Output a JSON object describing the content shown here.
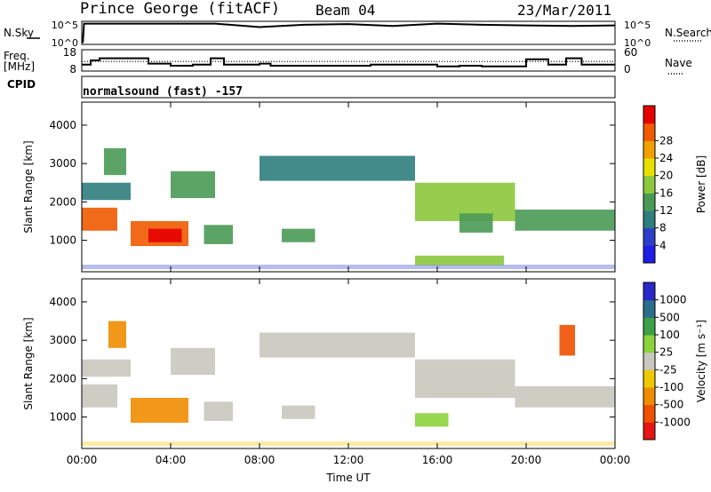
{
  "header": {
    "station": "Prince George (fitACF)",
    "beam": "Beam 04",
    "date": "23/Mar/2011"
  },
  "side_labels": {
    "nsky": "N.Sky",
    "nsearch": "N.Search",
    "freq": "Freq.",
    "freq_unit": "[MHz]",
    "nave": "Nave",
    "cpid": "CPID"
  },
  "mode_label": "normalsound (fast) -157",
  "colors": {
    "power": [
      "#1e1ee6",
      "#2d3ec8",
      "#2f7d7d",
      "#4a9a55",
      "#8cc83c",
      "#e8e000",
      "#f0a000",
      "#f05a00",
      "#e60000"
    ],
    "velocity": [
      "#2828c8",
      "#2d6e8c",
      "#3ca046",
      "#8cd23c",
      "#c8c8be",
      "#f0c800",
      "#f08c00",
      "#f05000",
      "#e61414"
    ]
  },
  "chart_data": [
    {
      "type": "line",
      "name": "nsky-nsearch",
      "x_unit": "hour UT",
      "y_ticks_left": [
        "10^5",
        "10^0"
      ],
      "y_ticks_right": [
        "10^5",
        "10^0"
      ],
      "series": [
        {
          "name": "N.Sky",
          "style": "solid",
          "x": [
            0,
            0.05,
            0.1,
            2,
            4,
            6,
            8,
            10,
            12,
            14,
            16,
            18,
            20,
            22,
            24
          ],
          "y": [
            0.1,
            0.1,
            0.9,
            0.9,
            0.9,
            0.9,
            0.75,
            0.85,
            0.88,
            0.8,
            0.9,
            0.85,
            0.82,
            0.8,
            0.82
          ]
        }
      ]
    },
    {
      "type": "line",
      "name": "freq-nave",
      "x_unit": "hour UT",
      "y_ticks_left": [
        "18",
        "8"
      ],
      "y_ticks_right": [
        "60",
        "0"
      ],
      "series": [
        {
          "name": "Freq",
          "style": "solid",
          "x": [
            0,
            0.4,
            0.4,
            0.8,
            0.8,
            3.0,
            3.0,
            4.0,
            4.0,
            5.0,
            5.0,
            5.8,
            5.8,
            6.4,
            6.4,
            8.0,
            8.0,
            8.5,
            8.5,
            13.0,
            13.0,
            16.0,
            16.0,
            17.0,
            17.0,
            18.0,
            18.0,
            20.0,
            20.0,
            21.0,
            21.0,
            21.8,
            21.8,
            22.5,
            22.5,
            24.0
          ],
          "y": [
            11,
            11,
            13,
            13,
            14,
            14,
            11.5,
            11.5,
            10.5,
            10.5,
            11,
            11,
            14,
            14,
            11,
            11,
            11.5,
            11.5,
            10.5,
            10.5,
            11,
            11,
            10.2,
            10.2,
            10.5,
            10.5,
            10.2,
            10.2,
            13.5,
            13.5,
            11,
            11,
            14,
            14,
            11,
            11
          ]
        },
        {
          "name": "Nave",
          "style": "dotted",
          "x": [
            0,
            24
          ],
          "y": [
            12.5,
            12.5
          ]
        }
      ]
    },
    {
      "type": "heatmap",
      "name": "power",
      "ylabel": "Slant Range [km]",
      "ylim": [
        180,
        4600
      ],
      "yticks": [
        1000,
        2000,
        3000,
        4000
      ],
      "colorbar_label": "Power [dB]",
      "colorbar_ticks": [
        "4",
        "8",
        "12",
        "16",
        "20",
        "24",
        "28"
      ],
      "echo_bands": [
        {
          "x0": 0.0,
          "x1": 1.6,
          "r0": 1250,
          "r1": 1850,
          "level": 7
        },
        {
          "x0": 0.0,
          "x1": 2.2,
          "r0": 2050,
          "r1": 2500,
          "level": 2
        },
        {
          "x0": 1.0,
          "x1": 2.0,
          "r0": 2700,
          "r1": 3400,
          "level": 3
        },
        {
          "x0": 2.2,
          "x1": 4.8,
          "r0": 850,
          "r1": 1500,
          "level": 7
        },
        {
          "x0": 3.0,
          "x1": 4.5,
          "r0": 950,
          "r1": 1300,
          "level": 8
        },
        {
          "x0": 4.0,
          "x1": 6.0,
          "r0": 2100,
          "r1": 2800,
          "level": 3
        },
        {
          "x0": 5.5,
          "x1": 6.8,
          "r0": 900,
          "r1": 1400,
          "level": 3
        },
        {
          "x0": 8.0,
          "x1": 15.0,
          "r0": 2550,
          "r1": 3200,
          "level": 2
        },
        {
          "x0": 9.0,
          "x1": 10.5,
          "r0": 950,
          "r1": 1300,
          "level": 3
        },
        {
          "x0": 15.0,
          "x1": 19.5,
          "r0": 1500,
          "r1": 2500,
          "level": 4
        },
        {
          "x0": 17.0,
          "x1": 18.5,
          "r0": 1200,
          "r1": 1700,
          "level": 3
        },
        {
          "x0": 19.5,
          "x1": 24.0,
          "r0": 1250,
          "r1": 1800,
          "level": 3
        },
        {
          "x0": 15.0,
          "x1": 19.0,
          "r0": 350,
          "r1": 600,
          "level": 4
        }
      ]
    },
    {
      "type": "heatmap",
      "name": "velocity",
      "ylabel": "Slant Range [km]",
      "xlabel": "Time UT",
      "ylim": [
        180,
        4600
      ],
      "yticks": [
        1000,
        2000,
        3000,
        4000
      ],
      "xticks": [
        "00:00",
        "04:00",
        "08:00",
        "12:00",
        "16:00",
        "20:00",
        "00:00"
      ],
      "colorbar_label": "Velocity [m s⁻¹]",
      "colorbar_ticks": [
        "1000",
        "500",
        "100",
        "25",
        "-25",
        "-100",
        "-500",
        "-1000"
      ],
      "echo_bands": [
        {
          "x0": 0.0,
          "x1": 1.6,
          "r0": 1250,
          "r1": 1850,
          "level": 4
        },
        {
          "x0": 0.0,
          "x1": 2.2,
          "r0": 2050,
          "r1": 2500,
          "level": 4
        },
        {
          "x0": 1.2,
          "x1": 2.0,
          "r0": 2800,
          "r1": 3500,
          "level": 6
        },
        {
          "x0": 2.2,
          "x1": 4.8,
          "r0": 850,
          "r1": 1500,
          "level": 6
        },
        {
          "x0": 4.0,
          "x1": 6.0,
          "r0": 2100,
          "r1": 2800,
          "level": 4
        },
        {
          "x0": 5.5,
          "x1": 6.8,
          "r0": 900,
          "r1": 1400,
          "level": 4
        },
        {
          "x0": 8.0,
          "x1": 15.0,
          "r0": 2550,
          "r1": 3200,
          "level": 4
        },
        {
          "x0": 9.0,
          "x1": 10.5,
          "r0": 950,
          "r1": 1300,
          "level": 4
        },
        {
          "x0": 15.0,
          "x1": 19.5,
          "r0": 1500,
          "r1": 2500,
          "level": 4
        },
        {
          "x0": 19.5,
          "x1": 24.0,
          "r0": 1250,
          "r1": 1800,
          "level": 4
        },
        {
          "x0": 15.0,
          "x1": 16.5,
          "r0": 750,
          "r1": 1100,
          "level": 3
        },
        {
          "x0": 21.5,
          "x1": 22.2,
          "r0": 2600,
          "r1": 3400,
          "level": 7
        }
      ]
    }
  ]
}
